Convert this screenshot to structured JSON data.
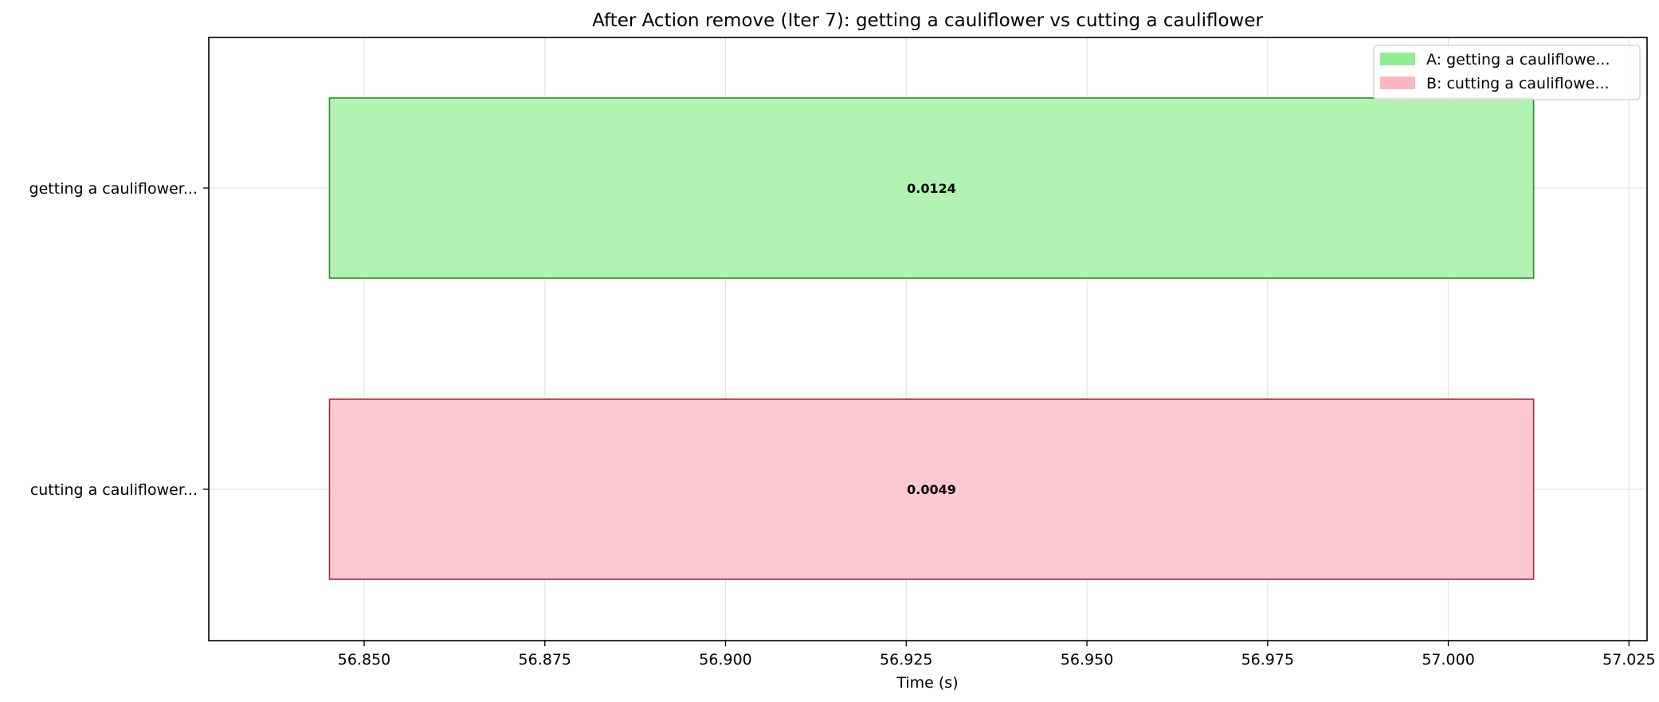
{
  "chart_data": {
    "type": "bar",
    "orientation": "horizontal",
    "title": "After Action remove (Iter 7): getting a cauliflower vs cutting a cauliflower",
    "xlabel": "Time (s)",
    "ylabel": "",
    "xlim": [
      56.8285,
      57.0275
    ],
    "xticks": [
      "56.850",
      "56.875",
      "56.900",
      "56.925",
      "56.950",
      "56.975",
      "57.000",
      "57.025"
    ],
    "xtick_values": [
      56.85,
      56.875,
      56.9,
      56.925,
      56.95,
      56.975,
      57.0,
      57.025
    ],
    "grid": true,
    "legend_position": "top-right",
    "series": [
      {
        "name": "A: getting a cauliflowe...",
        "category": "getting a cauliflower...",
        "start": 56.8452,
        "end": 57.0118,
        "value_label": "0.0124",
        "fill_color": "#b2f2b2",
        "edge_color": "#2e8b2e",
        "legend_color": "#90ee90"
      },
      {
        "name": "B: cutting a cauliflowe...",
        "category": "cutting a cauliflower...",
        "start": 56.8452,
        "end": 57.0118,
        "value_label": "0.0049",
        "fill_color": "#fcc9d3",
        "edge_color": "#a0303a",
        "legend_color": "#ffb6c1"
      }
    ]
  }
}
